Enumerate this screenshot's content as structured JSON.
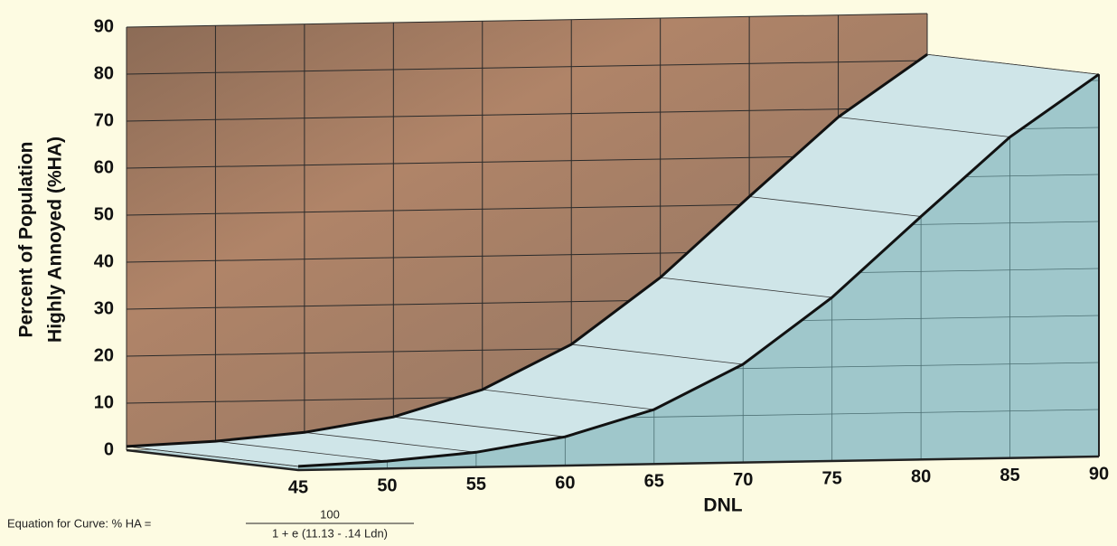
{
  "chart_data": {
    "type": "area",
    "ylabel": [
      "Percent of Population",
      "Highly Annoyed (%HA)"
    ],
    "xlabel": "DNL",
    "x": [
      45,
      50,
      55,
      60,
      65,
      70,
      75,
      80,
      85,
      90
    ],
    "values": [
      0.79,
      1.58,
      3.14,
      6.12,
      11.6,
      20.9,
      34.8,
      51.7,
      68.3,
      81.3
    ],
    "color": "#cfe5e8",
    "xlim": [
      45,
      90
    ],
    "xticks": [
      45,
      50,
      55,
      60,
      65,
      70,
      75,
      80,
      85,
      90
    ],
    "ylim": [
      0,
      90
    ],
    "yticks": [
      0,
      10,
      20,
      30,
      40,
      50,
      60,
      70,
      80,
      90
    ],
    "grid": true,
    "equation": {
      "label": "Equation for Curve:  % HA =",
      "numerator": "100",
      "denominator": "1 + e (11.13 - .14 Ldn)"
    }
  }
}
